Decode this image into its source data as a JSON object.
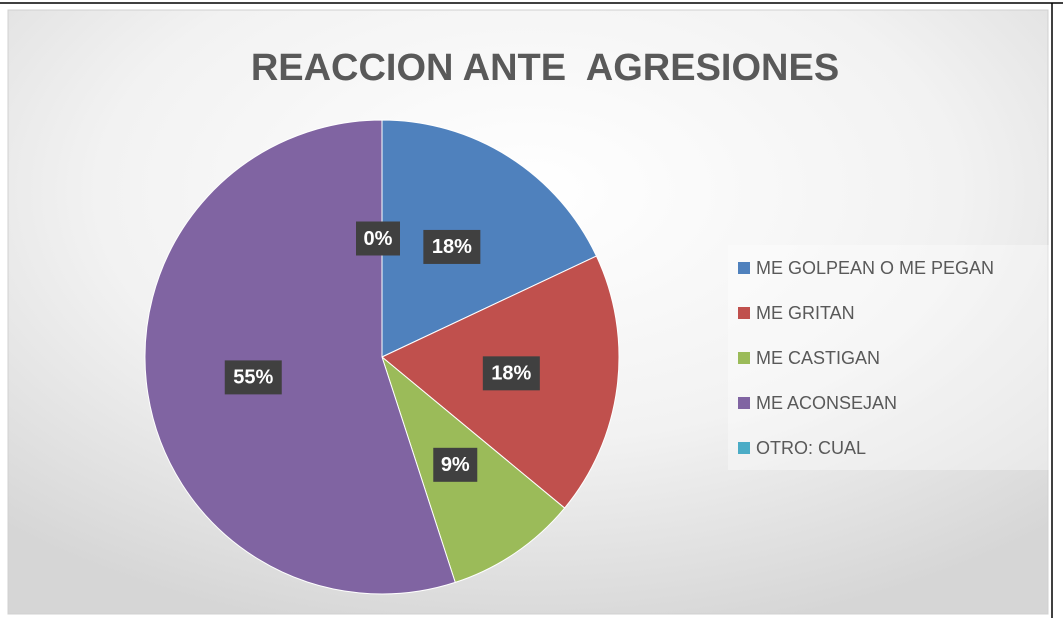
{
  "chart_data": {
    "type": "pie",
    "title": "REACCION ANTE  AGRESIONES",
    "categories": [
      "ME GOLPEAN O ME PEGAN",
      "ME GRITAN",
      "ME CASTIGAN",
      "ME ACONSEJAN",
      "OTRO: CUAL"
    ],
    "values": [
      18,
      18,
      9,
      55,
      0
    ],
    "value_labels": [
      "18%",
      "18%",
      "9%",
      "55%",
      "0%"
    ],
    "colors": [
      "#4f81bd",
      "#c0504d",
      "#9bbb59",
      "#8064a2",
      "#4bacc6"
    ],
    "legend": "right"
  }
}
